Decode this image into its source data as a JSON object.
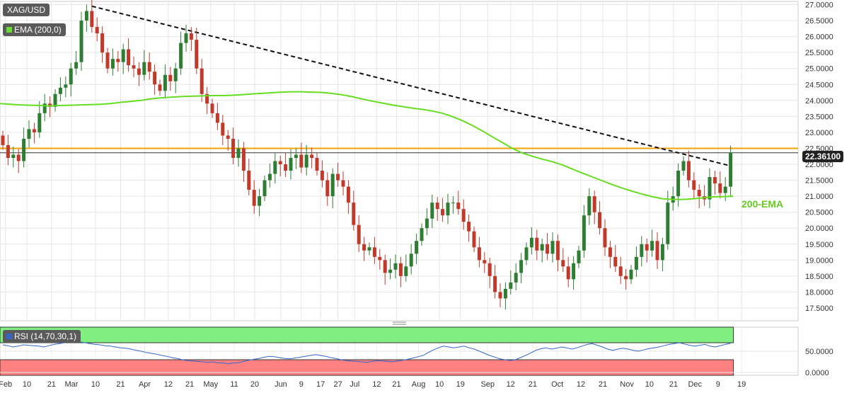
{
  "chart_data": {
    "type": "candlestick",
    "symbol": "XAG/USD",
    "indicator_label": "EMA (200,0)",
    "rsi_label": "RSI (14,70,30,1)",
    "current_price_label": "22.36100",
    "ema_annotation": "200-EMA",
    "price_ticks": [
      "27.0000",
      "26.5000",
      "26.0000",
      "25.5000",
      "25.0000",
      "24.5000",
      "24.0000",
      "23.5000",
      "23.0000",
      "22.5000",
      "22.0000",
      "21.5000",
      "21.0000",
      "20.5000",
      "20.0000",
      "19.5000",
      "19.0000",
      "18.5000",
      "18.0000",
      "17.5000"
    ],
    "price_tick_values": [
      27.0,
      26.5,
      26.0,
      25.5,
      25.0,
      24.5,
      24.0,
      23.5,
      23.0,
      22.5,
      22.0,
      21.5,
      21.0,
      20.5,
      20.0,
      19.5,
      19.0,
      18.5,
      18.0,
      17.5
    ],
    "ylim": [
      17.1,
      27.1
    ],
    "rsi_ticks": [
      "50.0000",
      "0.0000"
    ],
    "rsi_tick_values": [
      50,
      0
    ],
    "rsi_levels": [
      70,
      30
    ],
    "x_ticks": [
      "Feb",
      "10",
      "21",
      "Mar",
      "10",
      "21",
      "Apr",
      "12",
      "21",
      "May",
      "11",
      "20",
      "Jun",
      "9",
      "17",
      "27",
      "Jul",
      "12",
      "21",
      "Aug",
      "10",
      "19",
      "Sep",
      "12",
      "21",
      "Oct",
      "12",
      "21",
      "Nov",
      "10",
      "21",
      "Dec",
      "9",
      "19"
    ],
    "x_tick_positions": [
      0.5,
      4.6,
      9.3,
      13.1,
      17.7,
      22.5,
      27.1,
      31.6,
      35.7,
      39.7,
      44.2,
      48.1,
      53.1,
      57.0,
      60.7,
      64.0,
      67.2,
      71.4,
      75.2,
      79.4,
      83.4,
      87.4,
      92.6,
      97.0,
      101.2,
      105.9,
      110.4,
      114.6,
      119.2,
      123.5,
      128.1,
      132.2,
      136.6,
      141.1
    ],
    "resistance_level": 22.5,
    "current_price": 22.361,
    "trendline": [
      {
        "x": 17.0,
        "y": 26.95
      },
      {
        "x": 139.0,
        "y": 21.95
      }
    ],
    "candles_close": [
      22.6,
      22.2,
      22.3,
      22.1,
      22.8,
      23.1,
      23.0,
      23.6,
      23.9,
      23.8,
      24.2,
      24.4,
      24.5,
      25.0,
      25.2,
      26.5,
      26.8,
      26.3,
      26.1,
      25.5,
      25.0,
      25.3,
      25.2,
      25.6,
      25.1,
      25.0,
      24.8,
      25.2,
      24.9,
      24.5,
      24.3,
      24.8,
      24.6,
      25.0,
      25.8,
      26.1,
      25.9,
      25.0,
      24.2,
      23.9,
      23.6,
      23.3,
      22.9,
      22.8,
      22.2,
      22.5,
      21.8,
      21.2,
      20.7,
      21.0,
      21.5,
      21.7,
      22.1,
      22.0,
      21.8,
      22.2,
      22.3,
      21.9,
      22.3,
      22.2,
      21.8,
      21.5,
      21.0,
      21.7,
      21.5,
      21.3,
      20.8,
      20.1,
      19.5,
      19.3,
      19.4,
      19.1,
      19.0,
      18.6,
      18.7,
      18.9,
      18.5,
      18.8,
      19.2,
      19.6,
      20.0,
      20.3,
      20.8,
      20.6,
      20.4,
      20.8,
      20.8,
      20.6,
      20.2,
      19.9,
      19.4,
      19.0,
      18.9,
      18.5,
      18.0,
      17.8,
      18.1,
      18.3,
      18.6,
      19.0,
      19.4,
      19.7,
      19.3,
      19.5,
      19.2,
      19.6,
      19.0,
      18.8,
      18.4,
      18.9,
      19.3,
      20.4,
      21.0,
      20.5,
      20.0,
      19.4,
      19.1,
      18.8,
      18.5,
      18.4,
      18.7,
      19.1,
      19.5,
      19.3,
      19.6,
      19.0,
      19.5,
      20.8,
      21.0,
      21.8,
      22.1,
      21.5,
      21.2,
      21.0,
      20.9,
      21.6,
      21.4,
      21.1,
      21.3,
      22.361
    ],
    "ema_values": [
      23.9,
      23.88,
      23.86,
      23.85,
      23.84,
      23.83,
      23.84,
      23.85,
      23.86,
      23.87,
      23.88,
      23.9,
      23.94,
      23.97,
      24.0,
      24.05,
      24.08,
      24.1,
      24.12,
      24.13,
      24.14,
      24.15,
      24.15,
      24.16,
      24.18,
      24.2,
      24.22,
      24.24,
      24.26,
      24.27,
      24.27,
      24.26,
      24.25,
      24.22,
      24.18,
      24.12,
      24.05,
      23.98,
      23.92,
      23.86,
      23.81,
      23.76,
      23.72,
      23.67,
      23.6,
      23.5,
      23.37,
      23.22,
      23.05,
      22.86,
      22.68,
      22.5,
      22.35,
      22.25,
      22.16,
      22.08,
      21.98,
      21.85,
      21.72,
      21.6,
      21.48,
      21.36,
      21.25,
      21.15,
      21.06,
      20.98,
      20.92,
      20.9,
      20.9,
      20.92,
      20.95,
      20.98,
      20.99,
      21.0
    ],
    "rsi_values": [
      65,
      63,
      60,
      62,
      65,
      64,
      63,
      62,
      60,
      63,
      66,
      68,
      70,
      72,
      73,
      72,
      70,
      68,
      66,
      65,
      63,
      62,
      60,
      58,
      57,
      55,
      52,
      50,
      47,
      45,
      43,
      40,
      38,
      35,
      33,
      30,
      28,
      27,
      26,
      25,
      24,
      25,
      23,
      22,
      21,
      22,
      23,
      26,
      29,
      31,
      33,
      36,
      38,
      37,
      35,
      33,
      32,
      34,
      36,
      38,
      40,
      42,
      40,
      38,
      35,
      33,
      30,
      28,
      27,
      26,
      25,
      24,
      26,
      28,
      27,
      26,
      25,
      27,
      29,
      31,
      34,
      37,
      40,
      47,
      53,
      58,
      62,
      60,
      58,
      60,
      62,
      58,
      55,
      50,
      45,
      40,
      36,
      32,
      30,
      28,
      30,
      35,
      40,
      46,
      52,
      56,
      58,
      55,
      57,
      60,
      58,
      55,
      58,
      62,
      66,
      68,
      64,
      60,
      55,
      52,
      55,
      57,
      55,
      52,
      50,
      53,
      56,
      58,
      60,
      63,
      66,
      68,
      70,
      67,
      64,
      62,
      64,
      66,
      62,
      60,
      63,
      66,
      69
    ]
  }
}
